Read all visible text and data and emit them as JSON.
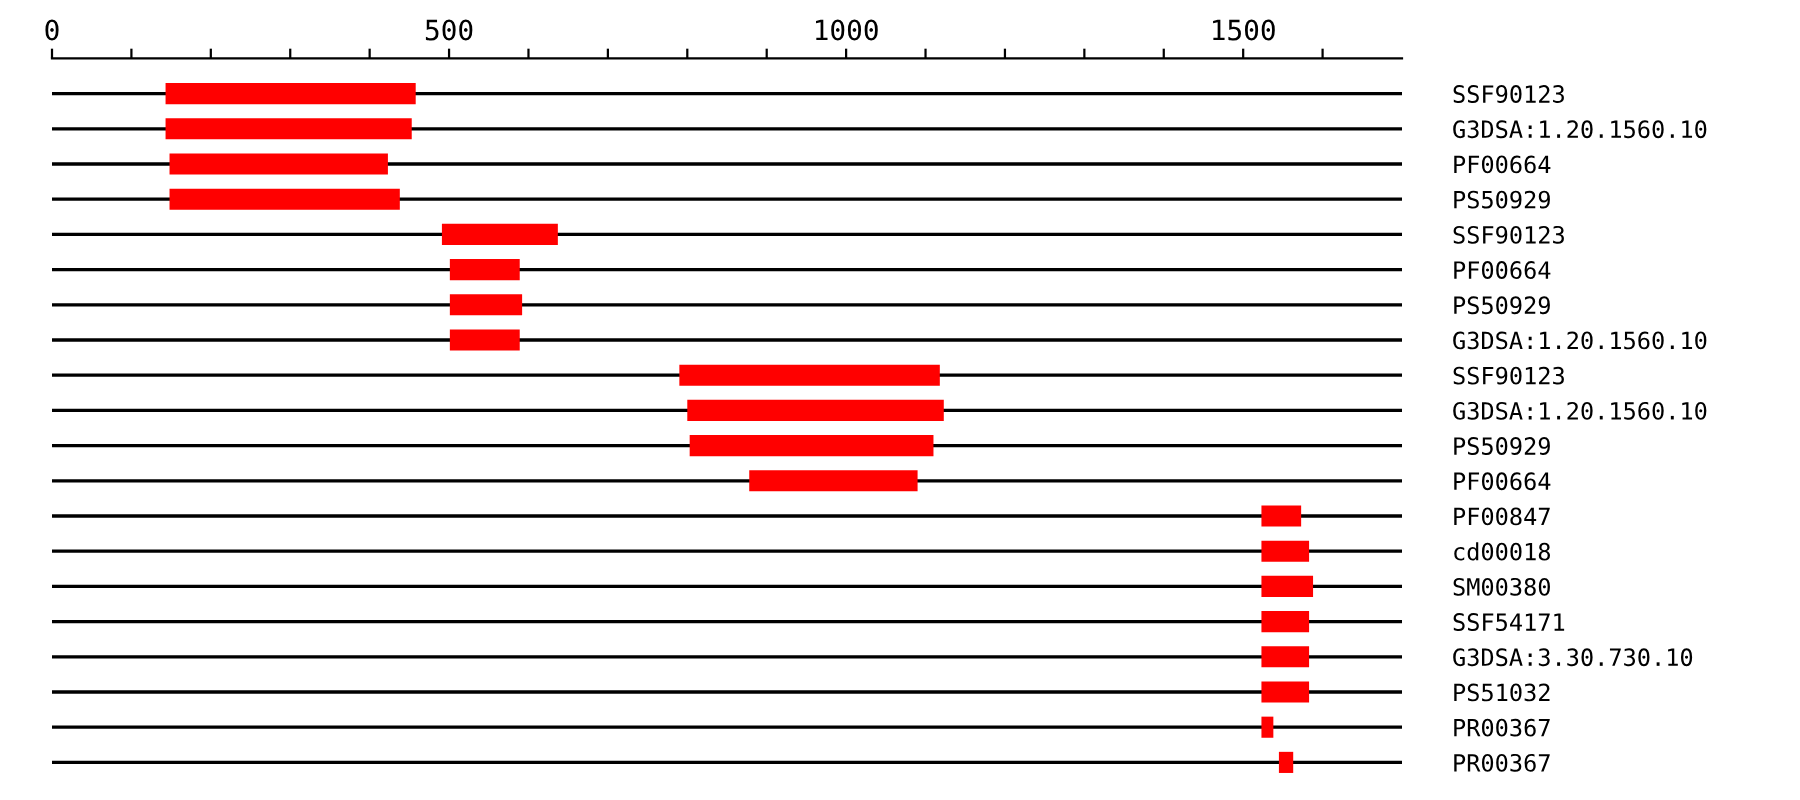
{
  "chart_data": {
    "type": "bar",
    "orientation": "horizontal",
    "categories": [
      "SSF90123",
      "G3DSA:1.20.1560.10",
      "PF00664",
      "PS50929",
      "SSF90123",
      "PF00664",
      "PS50929",
      "G3DSA:1.20.1560.10",
      "SSF90123",
      "G3DSA:1.20.1560.10",
      "PS50929",
      "PF00664",
      "PF00847",
      "cd00018",
      "SM00380",
      "SSF54171",
      "G3DSA:3.30.730.10",
      "PS51032",
      "PR00367",
      "PR00367"
    ],
    "base": [
      143,
      143,
      148,
      148,
      491,
      501,
      501,
      501,
      790,
      800,
      803,
      878,
      1523,
      1523,
      1523,
      1523,
      1523,
      1523,
      1523,
      1545
    ],
    "values": [
      315,
      310,
      275,
      290,
      146,
      88,
      91,
      88,
      328,
      323,
      307,
      212,
      50,
      60,
      65,
      60,
      60,
      60,
      15,
      18
    ],
    "color": "#ff0000",
    "xlim": [
      0,
      1700
    ],
    "xticks": [
      0,
      {
        "value": 100,
        "label": null
      },
      {
        "value": 200,
        "label": null
      },
      {
        "value": 300,
        "label": null
      },
      {
        "value": 400,
        "label": null
      },
      500,
      {
        "value": 600,
        "label": null
      },
      {
        "value": 700,
        "label": null
      },
      {
        "value": 800,
        "label": null
      },
      {
        "value": 900,
        "label": null
      },
      1000,
      {
        "value": 1100,
        "label": null
      },
      {
        "value": 1200,
        "label": null
      },
      {
        "value": 1300,
        "label": null
      },
      {
        "value": 1400,
        "label": null
      },
      1500,
      {
        "value": 1600,
        "label": null
      }
    ],
    "grid": "y"
  }
}
